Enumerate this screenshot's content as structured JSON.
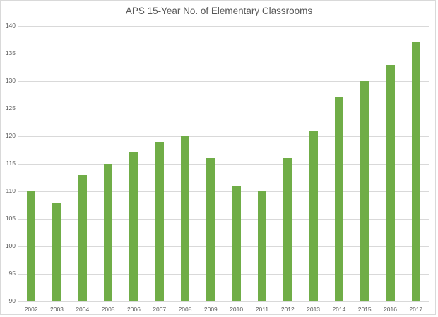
{
  "chart_data": {
    "type": "bar",
    "title": "APS 15-Year No. of Elementary Classrooms",
    "xlabel": "",
    "ylabel": "",
    "ylim": [
      90,
      140
    ],
    "yticks": [
      90,
      95,
      100,
      105,
      110,
      115,
      120,
      125,
      130,
      135,
      140
    ],
    "grid": true,
    "legend": "none",
    "categories": [
      "2002",
      "2003",
      "2004",
      "2005",
      "2006",
      "2007",
      "2008",
      "2009",
      "2010",
      "2011",
      "2012",
      "2013",
      "2014",
      "2015",
      "2016",
      "2017"
    ],
    "values": [
      110,
      108,
      113,
      115,
      117,
      119,
      120,
      116,
      111,
      110,
      116,
      121,
      127,
      130,
      133,
      137
    ],
    "bar_color": "#70AD47"
  }
}
